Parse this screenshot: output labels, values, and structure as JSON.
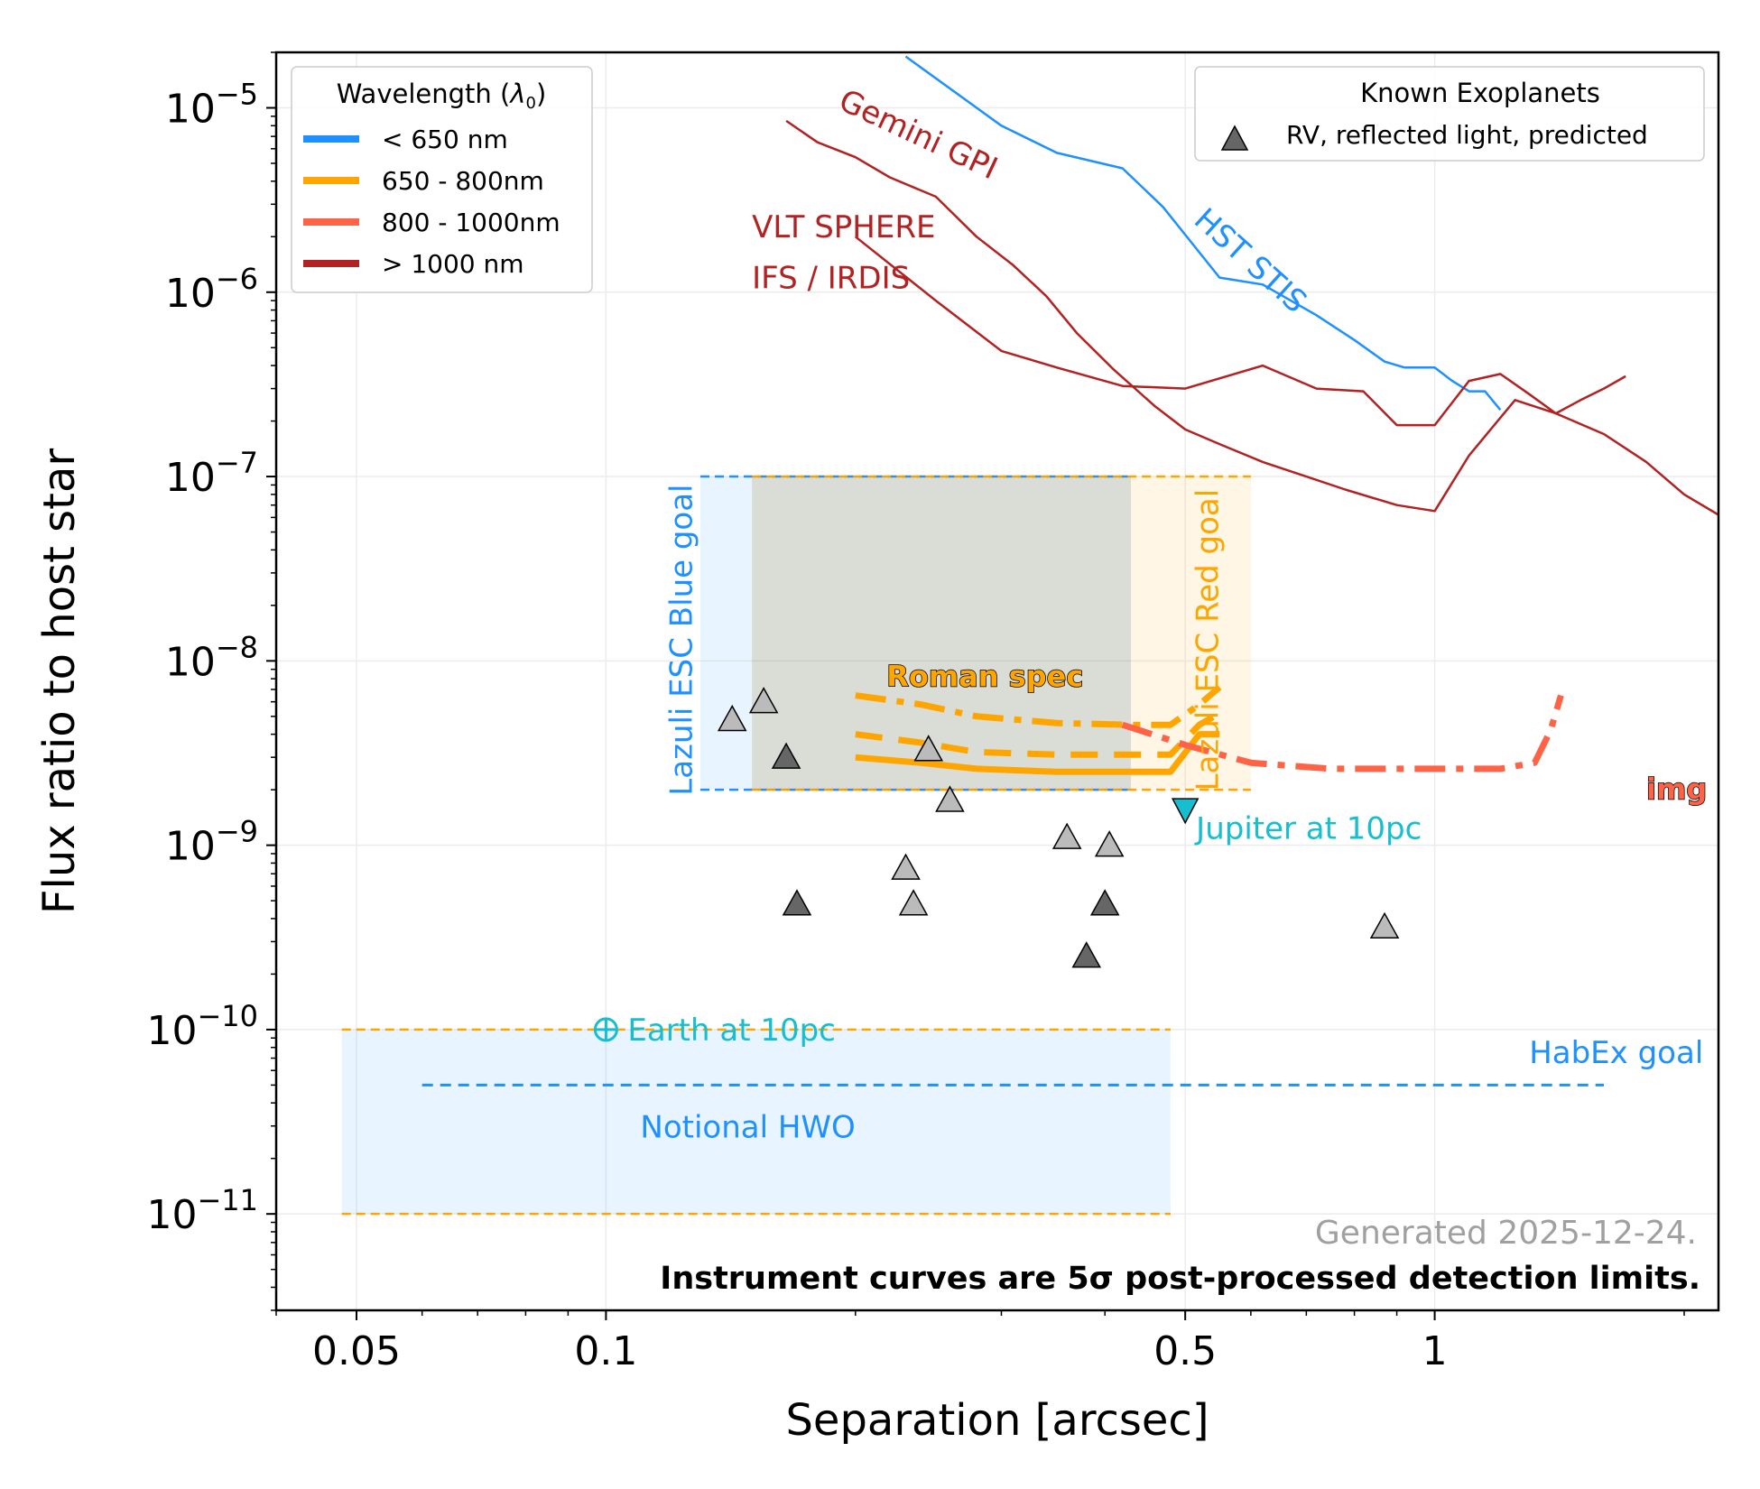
{
  "chart_data": {
    "type": "line",
    "xscale": "log",
    "yscale": "log",
    "xlabel": "Separation [arcsec]",
    "ylabel": "Flux ratio to host star",
    "xlim": [
      0.04,
      2.2
    ],
    "ylim": [
      3e-12,
      2e-05
    ],
    "grid": true,
    "x_ticks": [
      {
        "value": 0.05,
        "label": "0.05"
      },
      {
        "value": 0.1,
        "label": "0.1"
      },
      {
        "value": 0.5,
        "label": "0.5"
      },
      {
        "value": 1,
        "label": "1"
      }
    ],
    "y_ticks": [
      {
        "value": 1e-05,
        "base": "10",
        "exp": "−5"
      },
      {
        "value": 1e-06,
        "base": "10",
        "exp": "−6"
      },
      {
        "value": 1e-07,
        "base": "10",
        "exp": "−7"
      },
      {
        "value": 1e-08,
        "base": "10",
        "exp": "−8"
      },
      {
        "value": 1e-09,
        "base": "10",
        "exp": "−9"
      },
      {
        "value": 1e-10,
        "base": "10",
        "exp": "−10"
      },
      {
        "value": 1e-11,
        "base": "10",
        "exp": "−11"
      }
    ],
    "colors": {
      "blue": "#1e90ff",
      "orange": "#ffa500",
      "tomato": "#ff6347",
      "darkred": "#b22222",
      "teal": "#17becf",
      "gray": "#a0a0a0"
    },
    "wavelength_legend": {
      "title_prefix": "Wavelength (",
      "title_symbol": "λ",
      "title_sub": "0",
      "title_suffix": ")",
      "placement": "top-left",
      "entries": [
        {
          "label": "< 650 nm",
          "color": "#1e90ff"
        },
        {
          "label": "650 - 800nm",
          "color": "#ffa500"
        },
        {
          "label": "800 - 1000nm",
          "color": "#ff6347"
        },
        {
          "label": "> 1000 nm",
          "color": "#b22222"
        }
      ]
    },
    "exoplanet_legend": {
      "title": "Known Exoplanets",
      "entry": "RV, reflected light, predicted",
      "placement": "top-right"
    },
    "regions": [
      {
        "name": "lazuli-blue",
        "x": [
          0.13,
          0.43
        ],
        "y": [
          2e-09,
          1e-07
        ],
        "fill": "#1e90ff",
        "opacity": 0.1,
        "edge": "#1e90ff"
      },
      {
        "name": "lazuli-red",
        "x": [
          0.15,
          0.6
        ],
        "y": [
          2e-09,
          1e-07
        ],
        "fill": "#ffa500",
        "opacity": 0.1,
        "edge": "#ffa500"
      },
      {
        "name": "hwo",
        "x": [
          0.048,
          0.48
        ],
        "y": [
          1e-11,
          1e-10
        ],
        "fill": "#1e90ff",
        "opacity": 0.1,
        "edge": "#ffa500"
      }
    ],
    "series": [
      {
        "name": "HST STIS",
        "color": "#1e90ff",
        "width": 2.5,
        "dash": "",
        "x": [
          0.23,
          0.3,
          0.35,
          0.42,
          0.47,
          0.55,
          0.62,
          0.72,
          0.8,
          0.87,
          0.92,
          1.0,
          1.05,
          1.1,
          1.15,
          1.2
        ],
        "y": [
          1.9e-05,
          8e-06,
          5.7e-06,
          4.7e-06,
          2.9e-06,
          1.2e-06,
          1.1e-06,
          7.5e-07,
          5.5e-07,
          4.2e-07,
          3.9e-07,
          3.9e-07,
          3.3e-07,
          2.9e-07,
          2.9e-07,
          2.3e-07
        ]
      },
      {
        "name": "Gemini GPI",
        "color": "#b22222",
        "width": 2.5,
        "dash": "",
        "x": [
          0.165,
          0.18,
          0.2,
          0.22,
          0.25,
          0.28,
          0.31,
          0.34,
          0.37,
          0.41,
          0.46,
          0.5,
          0.55,
          0.62,
          0.7,
          0.78,
          0.9,
          1.0,
          1.1,
          1.25,
          1.4,
          1.6,
          1.8,
          2.0,
          2.2
        ],
        "y": [
          8.5e-06,
          6.5e-06,
          5.4e-06,
          4.2e-06,
          3.3e-06,
          2e-06,
          1.4e-06,
          9.5e-07,
          6e-07,
          3.8e-07,
          2.4e-07,
          1.8e-07,
          1.5e-07,
          1.2e-07,
          1e-07,
          8.5e-08,
          7e-08,
          6.5e-08,
          1.3e-07,
          2.6e-07,
          2.2e-07,
          1.7e-07,
          1.2e-07,
          8e-08,
          6.2e-08
        ]
      },
      {
        "name": "VLT SPHERE IFS / IRDIS",
        "color": "#b22222",
        "width": 2.5,
        "dash": "",
        "x": [
          0.2,
          0.25,
          0.3,
          0.35,
          0.42,
          0.5,
          0.62,
          0.72,
          0.82,
          0.9,
          1.0,
          1.1,
          1.2,
          1.3,
          1.4,
          1.5,
          1.6,
          1.7
        ],
        "y": [
          2e-06,
          9e-07,
          4.8e-07,
          3.9e-07,
          3.1e-07,
          3e-07,
          4e-07,
          3e-07,
          2.9e-07,
          1.9e-07,
          1.9e-07,
          3.3e-07,
          3.6e-07,
          2.8e-07,
          2.2e-07,
          2.6e-07,
          3e-07,
          3.5e-07
        ]
      },
      {
        "name": "Roman spec 1",
        "color": "#ffa500",
        "width": 7,
        "dash": "",
        "x": [
          0.2,
          0.24,
          0.28,
          0.35,
          0.43,
          0.48,
          0.52,
          0.55
        ],
        "y": [
          3e-09,
          2.8e-09,
          2.6e-09,
          2.5e-09,
          2.5e-09,
          2.5e-09,
          4e-09,
          4e-09
        ]
      },
      {
        "name": "Roman spec 2",
        "color": "#ffa500",
        "width": 7,
        "dash": "30,18",
        "x": [
          0.2,
          0.24,
          0.28,
          0.35,
          0.43,
          0.48,
          0.52,
          0.55
        ],
        "y": [
          4e-09,
          3.6e-09,
          3.2e-09,
          3.1e-09,
          3.1e-09,
          3.1e-09,
          4.5e-09,
          5.2e-09
        ]
      },
      {
        "name": "Roman spec 3",
        "color": "#ffa500",
        "width": 7,
        "dash": "34,12,8,12",
        "x": [
          0.2,
          0.24,
          0.28,
          0.35,
          0.43,
          0.48,
          0.52,
          0.55
        ],
        "y": [
          6.5e-09,
          5.8e-09,
          5e-09,
          4.6e-09,
          4.5e-09,
          4.5e-09,
          5.8e-09,
          7.2e-09
        ]
      },
      {
        "name": "Roman img",
        "color": "#ff6347",
        "width": 7,
        "dash": "34,12,8,12",
        "x": [
          0.42,
          0.5,
          0.6,
          0.75,
          1.0,
          1.2,
          1.32,
          1.38,
          1.42
        ],
        "y": [
          4.5e-09,
          3.5e-09,
          2.8e-09,
          2.6e-09,
          2.6e-09,
          2.6e-09,
          2.8e-09,
          4.2e-09,
          6.5e-09
        ]
      },
      {
        "name": "HabEx goal",
        "color": "#1e90ff",
        "width": 3,
        "dash": "12,8",
        "x": [
          0.06,
          1.6
        ],
        "y": [
          5e-11,
          5e-11
        ]
      }
    ],
    "planets": [
      {
        "x": 0.142,
        "y": 4.8e-09,
        "shade": "light"
      },
      {
        "x": 0.155,
        "y": 6e-09,
        "shade": "light"
      },
      {
        "x": 0.165,
        "y": 3e-09,
        "shade": "dark"
      },
      {
        "x": 0.17,
        "y": 4.8e-10,
        "shade": "dark"
      },
      {
        "x": 0.23,
        "y": 7.5e-10,
        "shade": "light"
      },
      {
        "x": 0.235,
        "y": 4.8e-10,
        "shade": "light"
      },
      {
        "x": 0.245,
        "y": 3.3e-09,
        "shade": "light"
      },
      {
        "x": 0.26,
        "y": 1.75e-09,
        "shade": "light"
      },
      {
        "x": 0.36,
        "y": 1.1e-09,
        "shade": "light"
      },
      {
        "x": 0.38,
        "y": 2.5e-10,
        "shade": "dark"
      },
      {
        "x": 0.4,
        "y": 4.8e-10,
        "shade": "dark"
      },
      {
        "x": 0.405,
        "y": 1e-09,
        "shade": "light"
      },
      {
        "x": 0.87,
        "y": 3.6e-10,
        "shade": "light"
      }
    ],
    "reference_planets": [
      {
        "name": "Jupiter",
        "label": "Jupiter at 10pc",
        "x": 0.5,
        "y": 1.55e-09,
        "marker": "triangle-down"
      },
      {
        "name": "Earth",
        "label": "Earth at 10pc",
        "x": 0.1,
        "y": 1e-10,
        "marker": "earth"
      }
    ],
    "annotations": [
      {
        "name": "gemini-gpi",
        "text": "Gemini GPI",
        "x": 0.19,
        "y": 1e-05,
        "color": "#b22222",
        "rotate": 25
      },
      {
        "name": "hst-stis",
        "text": "HST STIS",
        "x": 0.51,
        "y": 2.4e-06,
        "color": "#1e90ff",
        "rotate": 42
      },
      {
        "name": "vlt-sphere",
        "text": "VLT SPHERE",
        "x": 0.15,
        "y": 1.98e-06,
        "color": "#b22222",
        "rotate": 0
      },
      {
        "name": "ifs-irdis",
        "text": "IFS / IRDIS",
        "x": 0.15,
        "y": 1.05e-06,
        "color": "#b22222",
        "rotate": 0
      },
      {
        "name": "lazuli-blue-goal",
        "text": "Lazuli ESC Blue goal",
        "x": 0.127,
        "y": 1.3e-08,
        "color": "#1e90ff",
        "rotate": -90
      },
      {
        "name": "lazuli-red-goal",
        "text": "Lazuli ESC Red goal",
        "x": 0.548,
        "y": 1.3e-08,
        "color": "#ffa500",
        "rotate": -90
      },
      {
        "name": "roman-spec",
        "text": "Roman spec",
        "x": 0.218,
        "y": 7.3e-09,
        "color": "#ffa500",
        "rotate": 0,
        "outlined": true
      },
      {
        "name": "roman-img",
        "text": "img",
        "x": 1.8,
        "y": 1.78e-09,
        "color": "#ff6347",
        "rotate": 0,
        "outlined": true
      },
      {
        "name": "habex-goal",
        "text": "HabEx goal",
        "x": 1.3,
        "y": 6.6e-11,
        "color": "#1e90ff",
        "rotate": 0
      },
      {
        "name": "notional-hwo",
        "text": "Notional HWO",
        "x": 0.11,
        "y": 2.6e-11,
        "color": "#1e90ff",
        "rotate": 0
      }
    ],
    "footer_note": "Generated 2025-12-24.",
    "footer_caption": "Instrument curves are 5σ post-processed detection limits."
  }
}
